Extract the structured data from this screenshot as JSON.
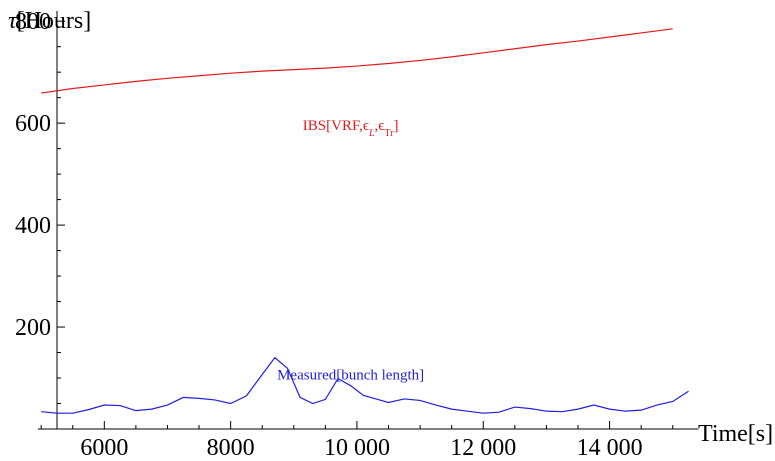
{
  "chart_data": {
    "type": "line",
    "xlabel": "Time[s]",
    "ylabel_prefix": "τ",
    "ylabel_suffix": "[Hours]",
    "xlim": [
      4950,
      15400
    ],
    "ylim": [
      0,
      820
    ],
    "x_ticks": [
      6000,
      8000,
      10000,
      12000,
      14000
    ],
    "x_tick_labels": [
      "6000",
      "8000",
      "10 000",
      "12 000",
      "14 000"
    ],
    "x_minor_step": 500,
    "y_ticks": [
      200,
      400,
      600,
      800
    ],
    "y_tick_labels": [
      "200",
      "400",
      "600",
      "800"
    ],
    "y_minor_step": 50,
    "grid": false,
    "series": [
      {
        "name": "IBS[VRF,ϵL,ϵTr]",
        "label_parts": [
          "IBS[VRF,",
          "ϵ",
          "L",
          ",",
          "ϵ",
          "Tr",
          "]"
        ],
        "color": "#e31a1c",
        "x": [
          5000,
          5500,
          6000,
          6500,
          7000,
          7500,
          8000,
          8500,
          9000,
          9500,
          10000,
          10500,
          11000,
          11500,
          12000,
          12500,
          13000,
          13500,
          14000,
          14500,
          15000
        ],
        "y": [
          659,
          668,
          675,
          682,
          688,
          693,
          698,
          702,
          705,
          708,
          712,
          717,
          723,
          730,
          738,
          746,
          754,
          761,
          769,
          777,
          785
        ]
      },
      {
        "name": "Measured[bunch length]",
        "color": "#1f1fe0",
        "x": [
          5000,
          5250,
          5500,
          5750,
          6000,
          6250,
          6500,
          6750,
          7000,
          7250,
          7500,
          7750,
          8000,
          8250,
          8500,
          8700,
          8900,
          9100,
          9300,
          9500,
          9700,
          9900,
          10100,
          10300,
          10500,
          10750,
          11000,
          11250,
          11500,
          11750,
          12000,
          12250,
          12500,
          12750,
          13000,
          13250,
          13500,
          13750,
          14000,
          14250,
          14500,
          14750,
          15000,
          15250
        ],
        "y": [
          34,
          31,
          31,
          38,
          47,
          46,
          36,
          39,
          47,
          62,
          60,
          57,
          50,
          65,
          107,
          140,
          119,
          62,
          50,
          58,
          99,
          85,
          66,
          59,
          52,
          59,
          56,
          47,
          39,
          35,
          31,
          33,
          43,
          40,
          35,
          34,
          39,
          47,
          39,
          35,
          37,
          47,
          54,
          74
        ]
      }
    ],
    "annotations": [
      {
        "series": 0,
        "x": 9900,
        "y": 587
      },
      {
        "series": 1,
        "x": 9900,
        "y": 97
      }
    ]
  }
}
